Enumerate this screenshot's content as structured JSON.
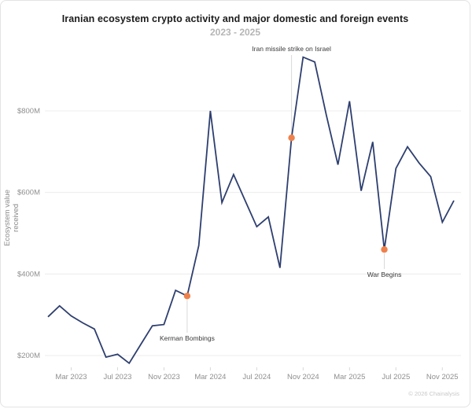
{
  "header": {
    "title": "Iranian ecosystem crypto activity and major domestic and foreign events",
    "subtitle": "2023 - 2025"
  },
  "footer": {
    "copyright": "© 2026 Chainalysis"
  },
  "chart_data": {
    "type": "line",
    "title": "Iranian ecosystem crypto activity and major domestic and foreign events",
    "subtitle": "2023 - 2025",
    "xlabel": "",
    "ylabel": "Ecosystem value received",
    "unit": "USD millions",
    "grid": "horizontal",
    "legend": "none",
    "x_months": [
      "Jan 2023",
      "Feb 2023",
      "Mar 2023",
      "Apr 2023",
      "May 2023",
      "Jun 2023",
      "Jul 2023",
      "Aug 2023",
      "Sep 2023",
      "Oct 2023",
      "Nov 2023",
      "Dec 2023",
      "Jan 2024",
      "Feb 2024",
      "Mar 2024",
      "Apr 2024",
      "May 2024",
      "Jun 2024",
      "Jul 2024",
      "Aug 2024",
      "Sep 2024",
      "Oct 2024",
      "Nov 2024",
      "Dec 2024",
      "Jan 2025",
      "Feb 2025",
      "Mar 2025",
      "Apr 2025",
      "May 2025",
      "Jun 2025",
      "Jul 2025",
      "Aug 2025",
      "Sep 2025",
      "Oct 2025",
      "Nov 2025",
      "Dec 2025"
    ],
    "values": [
      295,
      322,
      297,
      280,
      265,
      196,
      203,
      181,
      227,
      273,
      276,
      360,
      346,
      470,
      800,
      575,
      644,
      580,
      516,
      540,
      415,
      734,
      932,
      920,
      790,
      668,
      824,
      604,
      724,
      460,
      659,
      712,
      672,
      639,
      527,
      580
    ],
    "y_ticks": [
      {
        "value": 200,
        "label": "$200M"
      },
      {
        "value": 400,
        "label": "$400M"
      },
      {
        "value": 600,
        "label": "$600M"
      },
      {
        "value": 800,
        "label": "$800M"
      }
    ],
    "x_ticks": [
      {
        "index": 2,
        "label": "Mar 2023"
      },
      {
        "index": 6,
        "label": "Jul 2023"
      },
      {
        "index": 10,
        "label": "Nov 2023"
      },
      {
        "index": 14,
        "label": "Mar 2024"
      },
      {
        "index": 18,
        "label": "Jul 2024"
      },
      {
        "index": 22,
        "label": "Nov 2024"
      },
      {
        "index": 26,
        "label": "Mar 2025"
      },
      {
        "index": 30,
        "label": "Jul 2025"
      },
      {
        "index": 34,
        "label": "Nov 2025"
      }
    ],
    "events": [
      {
        "label": "Kerman Bombings",
        "month": "Jan 2024",
        "index": 12,
        "value": 346,
        "label_side": "below"
      },
      {
        "label": "Iran missile strike on Israel",
        "month": "Oct 2024",
        "index": 21,
        "value": 734,
        "label_side": "above"
      },
      {
        "label": "War Begins",
        "month": "Jun 2025",
        "index": 29,
        "value": 460,
        "label_side": "below"
      }
    ],
    "colors": {
      "line": "#2e3f6f",
      "event_marker": "#ee814b",
      "gridline": "#ececec",
      "axis_text": "#8f8f8f",
      "tick_mark": "#d8d8d8",
      "connector": "#d9d9d9",
      "annotation_text": "#3a3a3a"
    }
  }
}
